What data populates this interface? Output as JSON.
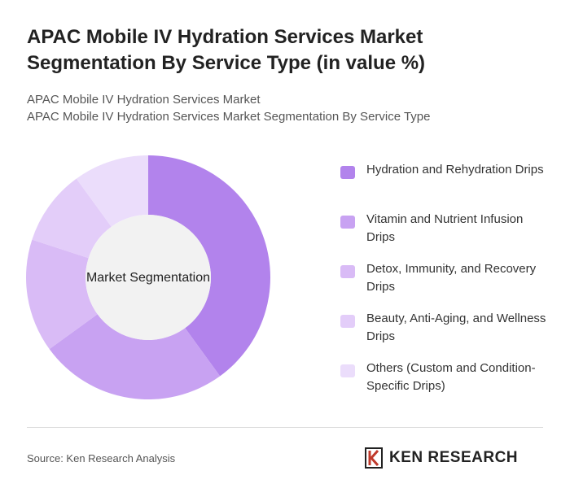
{
  "chart_data": {
    "type": "donut",
    "title": "APAC Mobile IV Hydration Services Market Segmentation By Service Type (in value %)",
    "subtitle": [
      "APAC Mobile IV Hydration Services Market",
      "APAC Mobile IV Hydration Services Market Segmentation By Service Type"
    ],
    "center_label": "Market Segmentation",
    "categories": [
      "Hydration and Rehydration Drips",
      "Vitamin and Nutrient Infusion Drips",
      "Detox, Immunity, and Recovery Drips",
      "Beauty, Anti-Aging, and Wellness Drips",
      "Others (Custom and Condition-Specific Drips)"
    ],
    "values": [
      40,
      25,
      15,
      10,
      10
    ],
    "colors": [
      "#b283ec",
      "#c8a2f2",
      "#d9bbf6",
      "#e3cdf9",
      "#ebddfb"
    ],
    "legend": "right"
  },
  "source": "Source: Ken Research Analysis",
  "brand": "KEN RESEARCH"
}
